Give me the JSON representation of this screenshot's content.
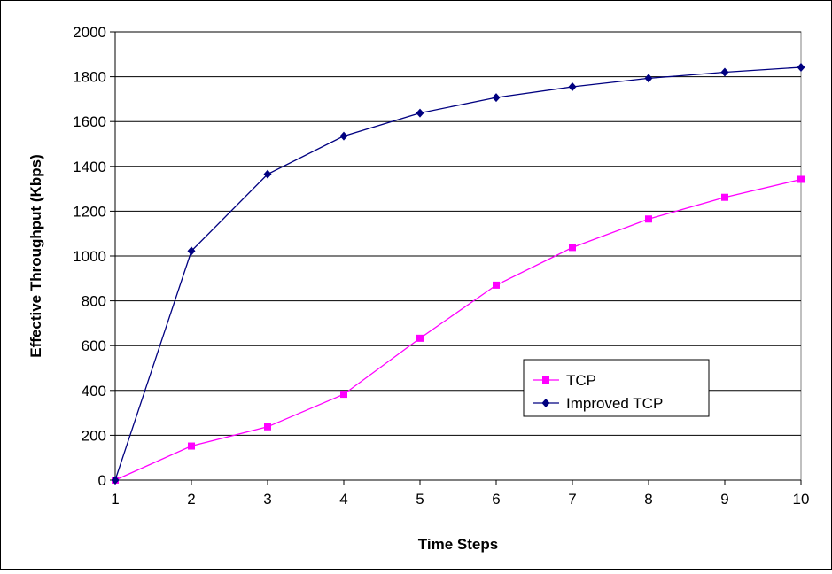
{
  "chart_data": {
    "type": "line",
    "title": "",
    "xlabel": "Time Steps",
    "ylabel": "Effective Throughput (Kbps)",
    "x": [
      1,
      2,
      3,
      4,
      5,
      6,
      7,
      8,
      9,
      10
    ],
    "ylim": [
      0,
      2000
    ],
    "yticks": [
      0,
      200,
      400,
      600,
      800,
      1000,
      1200,
      1400,
      1600,
      1800,
      2000
    ],
    "grid": "horizontal",
    "legend_position": "lower-right",
    "series": [
      {
        "name": "TCP",
        "color": "#ff00ff",
        "marker": "square",
        "values": [
          0,
          152,
          238,
          383,
          633,
          870,
          1038,
          1165,
          1262,
          1342
        ]
      },
      {
        "name": "Improved TCP",
        "color": "#000080",
        "marker": "diamond",
        "values": [
          0,
          1022,
          1365,
          1535,
          1638,
          1707,
          1755,
          1793,
          1820,
          1842
        ]
      }
    ]
  }
}
